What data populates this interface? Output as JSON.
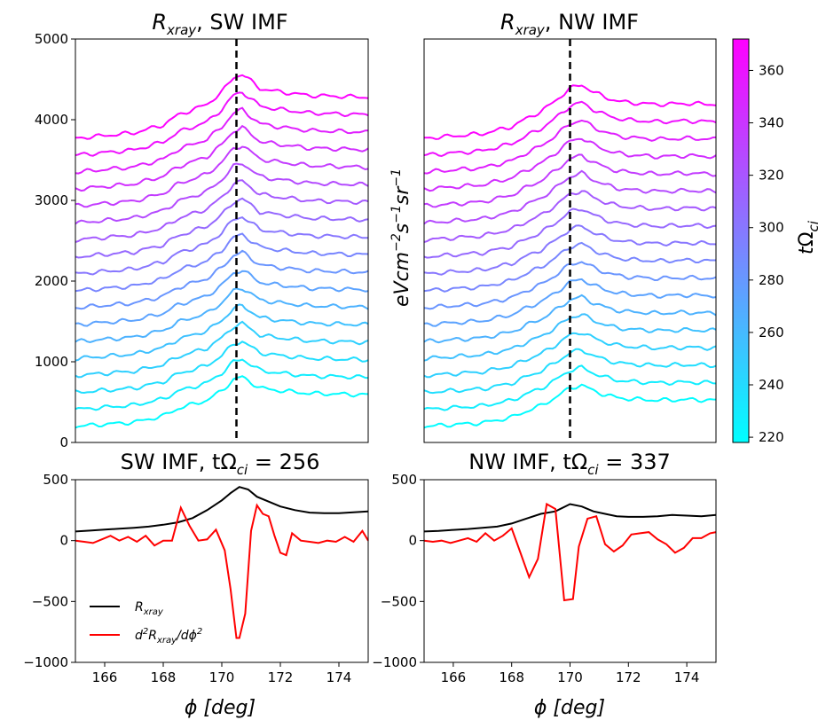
{
  "chart_data": [
    {
      "type": "line",
      "title": "R_xray, SW IMF",
      "title_main": "R",
      "title_sub": "xray",
      "title_rest": ", SW IMF",
      "xlim": [
        165,
        175
      ],
      "ylim": [
        0,
        5000
      ],
      "yticks": [
        0,
        1000,
        2000,
        3000,
        4000,
        5000
      ],
      "vline_x": 170.5,
      "y_axis_label": "",
      "stack": {
        "count": 18,
        "base_start": 200,
        "base_step": 210,
        "t_start": 220,
        "t_end": 371
      },
      "profile_points": [
        [
          165,
          0
        ],
        [
          167,
          60
        ],
        [
          168,
          150
        ],
        [
          168.5,
          260
        ],
        [
          169,
          320
        ],
        [
          169.5,
          380
        ],
        [
          170,
          520
        ],
        [
          170.4,
          680
        ],
        [
          170.7,
          720
        ],
        [
          171,
          640
        ],
        [
          171.3,
          560
        ],
        [
          171.6,
          540
        ],
        [
          172,
          520
        ],
        [
          173,
          480
        ],
        [
          174,
          470
        ],
        [
          175,
          460
        ]
      ]
    },
    {
      "type": "line",
      "title": "R_xray, NW IMF",
      "title_main": "R",
      "title_sub": "xray",
      "title_rest": ", NW IMF",
      "xlim": [
        165,
        175
      ],
      "ylim": [
        0,
        5000
      ],
      "vline_x": 170.0,
      "y_axis_label": "eVcm^-2 s^-1 sr^-1",
      "stack": {
        "count": 18,
        "base_start": 200,
        "base_step": 210,
        "t_start": 220,
        "t_end": 371
      },
      "profile_points": [
        [
          165,
          0
        ],
        [
          167,
          50
        ],
        [
          168,
          130
        ],
        [
          168.5,
          220
        ],
        [
          169,
          300
        ],
        [
          169.5,
          420
        ],
        [
          170,
          560
        ],
        [
          170.4,
          600
        ],
        [
          170.8,
          520
        ],
        [
          171.2,
          460
        ],
        [
          171.6,
          420
        ],
        [
          172,
          400
        ],
        [
          173,
          380
        ],
        [
          174,
          390
        ],
        [
          175,
          380
        ]
      ]
    },
    {
      "type": "line",
      "title": "SW IMF, tΩ_ci = 256",
      "title_left": "SW IMF, t",
      "title_omega": "Ω",
      "title_sub": "ci",
      "title_right": " = 256",
      "xlim": [
        165,
        175
      ],
      "ylim": [
        -1000,
        500
      ],
      "xticks": [
        166,
        168,
        170,
        172,
        174
      ],
      "yticks": [
        -1000,
        -500,
        0,
        500
      ],
      "xlabel": "ϕ [deg]",
      "series": [
        {
          "name": "R_xray",
          "color": "#000000",
          "x": [
            165,
            165.5,
            166,
            166.5,
            167,
            167.5,
            168,
            168.5,
            169,
            169.5,
            170,
            170.3,
            170.6,
            170.9,
            171.2,
            171.6,
            172,
            172.5,
            173,
            173.5,
            174,
            174.5,
            175
          ],
          "y": [
            75,
            82,
            90,
            98,
            105,
            115,
            130,
            150,
            185,
            250,
            330,
            390,
            440,
            420,
            360,
            320,
            280,
            250,
            230,
            225,
            225,
            232,
            240
          ]
        },
        {
          "name": "d²R_xray/dϕ²",
          "color": "#ff0000",
          "x": [
            165,
            165.3,
            165.6,
            165.9,
            166.2,
            166.5,
            166.8,
            167.1,
            167.4,
            167.7,
            168,
            168.3,
            168.6,
            168.9,
            169.2,
            169.5,
            169.8,
            170.1,
            170.3,
            170.5,
            170.6,
            170.8,
            171,
            171.2,
            171.4,
            171.6,
            171.8,
            172,
            172.2,
            172.4,
            172.7,
            173,
            173.3,
            173.6,
            173.9,
            174.2,
            174.5,
            174.8,
            175
          ],
          "y": [
            0,
            -10,
            -20,
            10,
            40,
            0,
            30,
            -10,
            40,
            -40,
            0,
            0,
            270,
            120,
            0,
            10,
            90,
            -80,
            -400,
            -800,
            -800,
            -600,
            80,
            290,
            220,
            200,
            40,
            -100,
            -120,
            60,
            0,
            -10,
            -20,
            0,
            -10,
            30,
            -10,
            80,
            0
          ]
        }
      ],
      "legend_labels": [
        "R_xray",
        "d²R_xray/dϕ²"
      ]
    },
    {
      "type": "line",
      "title": "NW IMF, tΩ_ci = 337",
      "title_left": "NW IMF, t",
      "title_omega": "Ω",
      "title_sub": "ci",
      "title_right": " = 337",
      "xlim": [
        165,
        175
      ],
      "ylim": [
        -1000,
        500
      ],
      "xticks": [
        166,
        168,
        170,
        172,
        174
      ],
      "yticks": [
        -1000,
        -500,
        0,
        500
      ],
      "xlabel": "ϕ [deg]",
      "series": [
        {
          "name": "R_xray",
          "color": "#000000",
          "x": [
            165,
            165.5,
            166,
            166.5,
            167,
            167.5,
            168,
            168.5,
            169,
            169.5,
            170,
            170.4,
            170.8,
            171.2,
            171.6,
            172,
            172.5,
            173,
            173.5,
            174,
            174.5,
            175
          ],
          "y": [
            75,
            80,
            88,
            95,
            105,
            115,
            140,
            180,
            220,
            240,
            300,
            280,
            240,
            220,
            200,
            195,
            195,
            200,
            210,
            205,
            200,
            210
          ]
        },
        {
          "name": "d²R_xray/dϕ²",
          "color": "#ff0000",
          "x": [
            165,
            165.3,
            165.6,
            165.9,
            166.2,
            166.5,
            166.8,
            167.1,
            167.4,
            167.7,
            168,
            168.3,
            168.6,
            168.9,
            169.2,
            169.5,
            169.8,
            170.1,
            170.3,
            170.6,
            170.9,
            171.2,
            171.5,
            171.8,
            172.1,
            172.4,
            172.7,
            173,
            173.3,
            173.6,
            173.9,
            174.2,
            174.5,
            174.8,
            175
          ],
          "y": [
            0,
            -10,
            0,
            -20,
            0,
            20,
            -10,
            60,
            0,
            40,
            100,
            -100,
            -300,
            -150,
            300,
            260,
            -490,
            -480,
            -50,
            180,
            200,
            -30,
            -90,
            -40,
            50,
            60,
            70,
            10,
            -30,
            -100,
            -60,
            20,
            20,
            60,
            70
          ]
        }
      ]
    }
  ],
  "colorbar": {
    "label": "tΩ_ci",
    "label_main": "t",
    "label_omega": "Ω",
    "label_sub": "ci",
    "range": [
      218,
      372
    ],
    "ticks": [
      220,
      240,
      260,
      280,
      300,
      320,
      340,
      360
    ],
    "color_low": "#00ffff",
    "color_high": "#ff00ff"
  },
  "ylabel_mid_parts": [
    "eVcm",
    "−2",
    "s",
    "−1",
    "sr",
    "−1"
  ]
}
